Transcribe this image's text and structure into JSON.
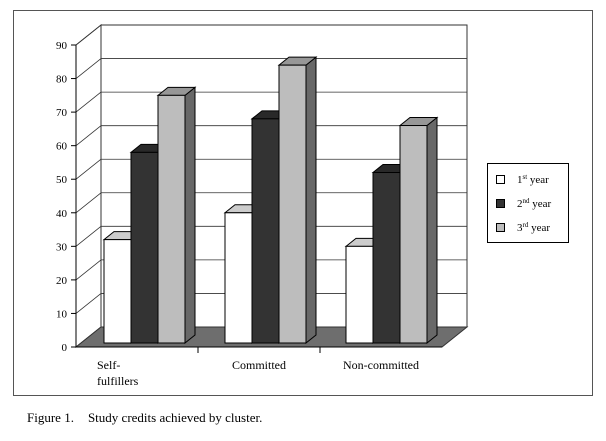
{
  "chart_data": {
    "type": "bar",
    "categories": [
      [
        "Self-",
        "fulfillers"
      ],
      [
        "Committed"
      ],
      [
        "Non-committed"
      ]
    ],
    "series": [
      {
        "name_base": "1",
        "name_sup": "st",
        "name_rest": " year",
        "color": "#ffffff",
        "values": [
          32,
          40,
          30
        ]
      },
      {
        "name_base": "2",
        "name_sup": "nd",
        "name_rest": " year",
        "color": "#333333",
        "values": [
          58,
          68,
          52
        ]
      },
      {
        "name_base": "3",
        "name_sup": "rd",
        "name_rest": " year",
        "color": "#bdbdbd",
        "values": [
          75,
          84,
          66
        ]
      }
    ],
    "ylim": [
      0,
      90
    ],
    "yticks": [
      "0",
      "10",
      "20",
      "30",
      "40",
      "50",
      "60",
      "70",
      "80",
      "90"
    ],
    "grid": true,
    "legend_position": "right",
    "three_d": true,
    "floor_color": "#6e6e6e",
    "wall_color": "#ffffff"
  },
  "caption": {
    "label": "Figure 1.",
    "text": "Study credits achieved by cluster."
  }
}
